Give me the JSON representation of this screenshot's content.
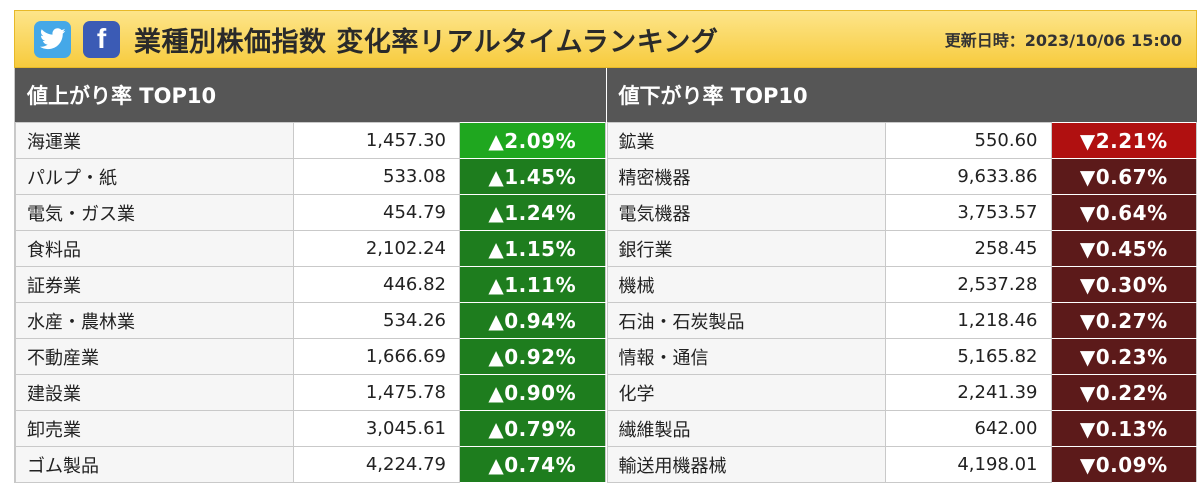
{
  "header": {
    "twitter_icon": "twitter-bird-icon",
    "facebook_icon": "facebook-f-icon",
    "facebook_letter": "f",
    "title": "業種別株価指数 変化率リアルタイムランキング",
    "updated": "更新日時：2023/10/06 15:00"
  },
  "colors": {
    "header_gradient_top": "#fde58a",
    "header_gradient_bottom": "#f7cb3d",
    "panel_head": "#565656",
    "up_strongest": "#1fa71f",
    "up": "#1e7d1e",
    "down_strongest": "#b01010",
    "down": "#5c1a1a"
  },
  "gainers": {
    "heading": "値上がり率 TOP10",
    "rows": [
      {
        "name": "海運業",
        "value": "1,457.30",
        "change": "▲2.09%"
      },
      {
        "name": "パルプ・紙",
        "value": "533.08",
        "change": "▲1.45%"
      },
      {
        "name": "電気・ガス業",
        "value": "454.79",
        "change": "▲1.24%"
      },
      {
        "name": "食料品",
        "value": "2,102.24",
        "change": "▲1.15%"
      },
      {
        "name": "証券業",
        "value": "446.82",
        "change": "▲1.11%"
      },
      {
        "name": "水産・農林業",
        "value": "534.26",
        "change": "▲0.94%"
      },
      {
        "name": "不動産業",
        "value": "1,666.69",
        "change": "▲0.92%"
      },
      {
        "name": "建設業",
        "value": "1,475.78",
        "change": "▲0.90%"
      },
      {
        "name": "卸売業",
        "value": "3,045.61",
        "change": "▲0.79%"
      },
      {
        "name": "ゴム製品",
        "value": "4,224.79",
        "change": "▲0.74%"
      }
    ]
  },
  "losers": {
    "heading": "値下がり率 TOP10",
    "rows": [
      {
        "name": "鉱業",
        "value": "550.60",
        "change": "▼2.21%"
      },
      {
        "name": "精密機器",
        "value": "9,633.86",
        "change": "▼0.67%"
      },
      {
        "name": "電気機器",
        "value": "3,753.57",
        "change": "▼0.64%"
      },
      {
        "name": "銀行業",
        "value": "258.45",
        "change": "▼0.45%"
      },
      {
        "name": "機械",
        "value": "2,537.28",
        "change": "▼0.30%"
      },
      {
        "name": "石油・石炭製品",
        "value": "1,218.46",
        "change": "▼0.27%"
      },
      {
        "name": "情報・通信",
        "value": "5,165.82",
        "change": "▼0.23%"
      },
      {
        "name": "化学",
        "value": "2,241.39",
        "change": "▼0.22%"
      },
      {
        "name": "繊維製品",
        "value": "642.00",
        "change": "▼0.13%"
      },
      {
        "name": "輸送用機器械",
        "value": "4,198.01",
        "change": "▼0.09%"
      }
    ]
  }
}
